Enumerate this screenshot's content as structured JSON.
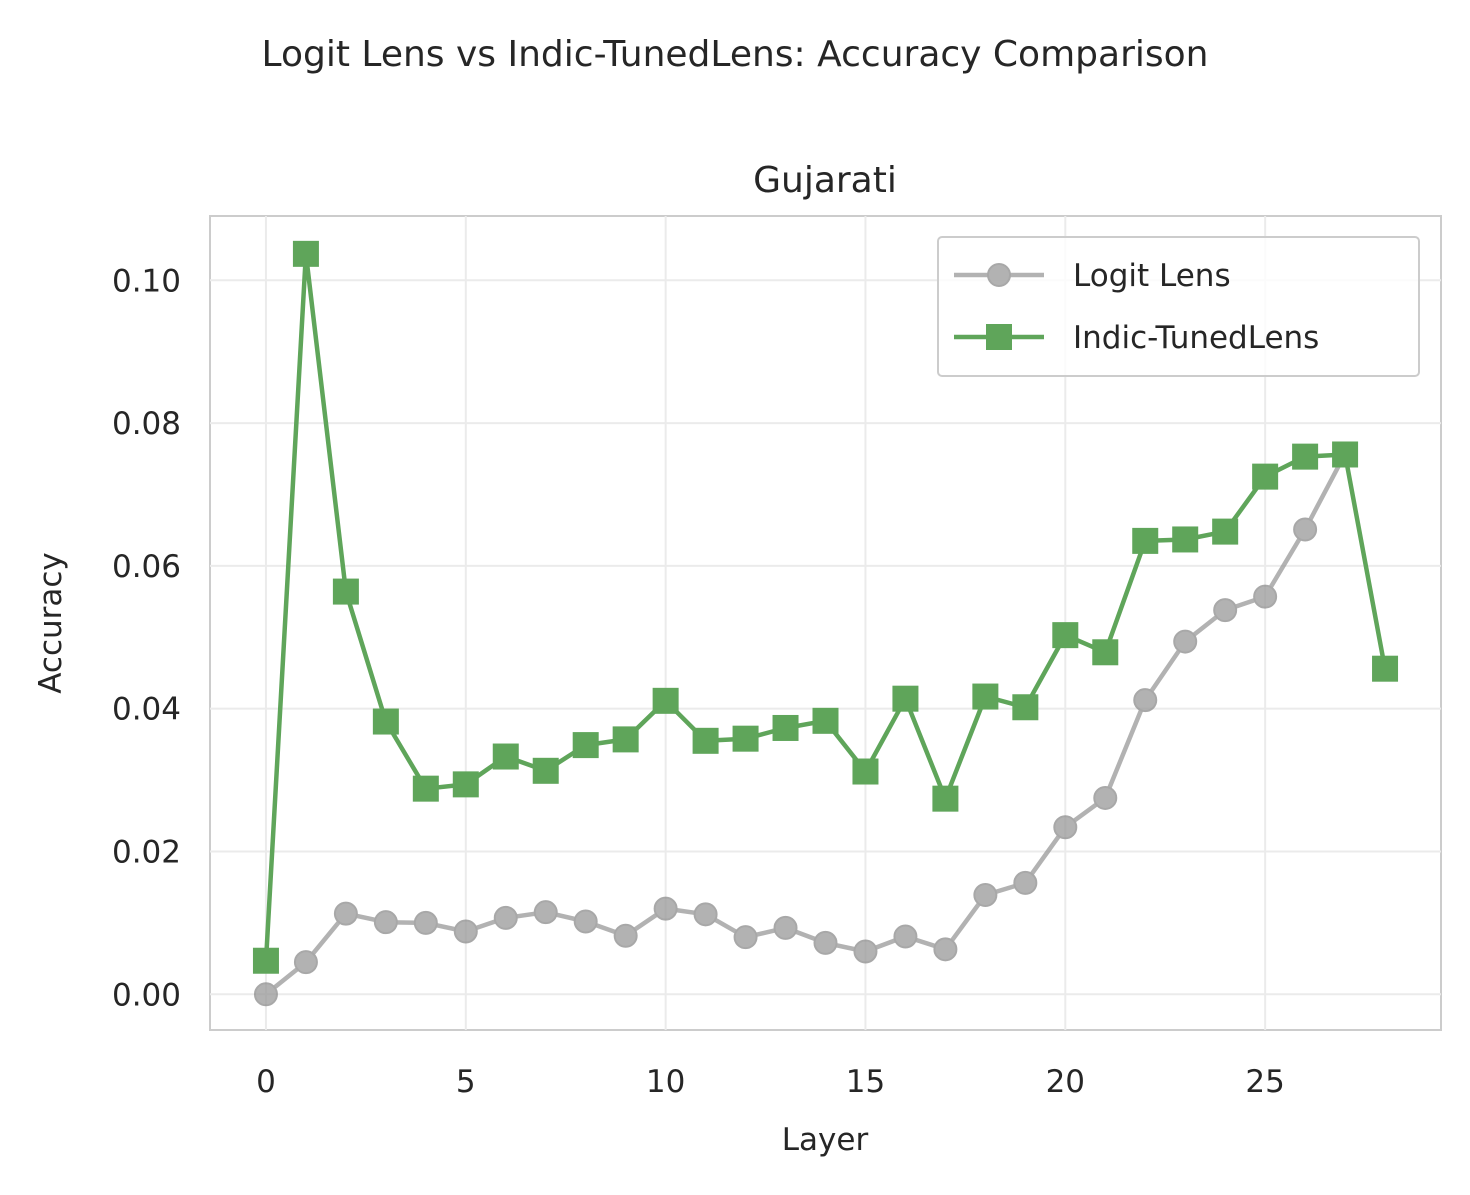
{
  "chart_data": {
    "type": "line",
    "suptitle": "Logit Lens vs Indic-TunedLens: Accuracy Comparison",
    "title": "Gujarati",
    "xlabel": "Layer",
    "ylabel": "Accuracy",
    "xlim": [
      -1.4,
      29.4
    ],
    "ylim": [
      -0.005,
      0.109
    ],
    "xticks": [
      0,
      5,
      10,
      15,
      20,
      25
    ],
    "xtick_labels": [
      "0",
      "5",
      "10",
      "15",
      "20",
      "25"
    ],
    "yticks": [
      0.0,
      0.02,
      0.04,
      0.06,
      0.08,
      0.1
    ],
    "ytick_labels": [
      "0.00",
      "0.02",
      "0.04",
      "0.06",
      "0.08",
      "0.10"
    ],
    "grid": true,
    "legend_position": "top-right",
    "series": [
      {
        "name": "Logit Lens",
        "color": "#999999",
        "marker": "circle",
        "x": [
          0,
          1,
          2,
          3,
          4,
          5,
          6,
          7,
          8,
          9,
          10,
          11,
          12,
          13,
          14,
          15,
          16,
          17,
          18,
          19,
          20,
          21,
          22,
          23,
          24,
          25,
          26,
          27
        ],
        "y": [
          0.0,
          0.0045,
          0.0113,
          0.0101,
          0.01,
          0.0088,
          0.0107,
          0.0115,
          0.0102,
          0.0082,
          0.012,
          0.0112,
          0.008,
          0.0093,
          0.0072,
          0.006,
          0.0081,
          0.0063,
          0.0139,
          0.0156,
          0.0234,
          0.0275,
          0.0412,
          0.0494,
          0.0538,
          0.0557,
          0.0651,
          0.0757
        ]
      },
      {
        "name": "Indic-TunedLens",
        "color": "#5fa55a",
        "marker": "square",
        "x": [
          0,
          1,
          2,
          3,
          4,
          5,
          6,
          7,
          8,
          9,
          10,
          11,
          12,
          13,
          14,
          15,
          16,
          17,
          18,
          19,
          20,
          21,
          22,
          23,
          24,
          25,
          26,
          27,
          28
        ],
        "y": [
          0.0047,
          0.1037,
          0.0564,
          0.0382,
          0.0288,
          0.0294,
          0.0333,
          0.0313,
          0.0349,
          0.0357,
          0.0411,
          0.0355,
          0.0358,
          0.0373,
          0.0383,
          0.0312,
          0.0414,
          0.0274,
          0.0417,
          0.0402,
          0.0503,
          0.0479,
          0.0635,
          0.0637,
          0.0648,
          0.0725,
          0.0753,
          0.0756,
          0.0456
        ]
      }
    ]
  }
}
